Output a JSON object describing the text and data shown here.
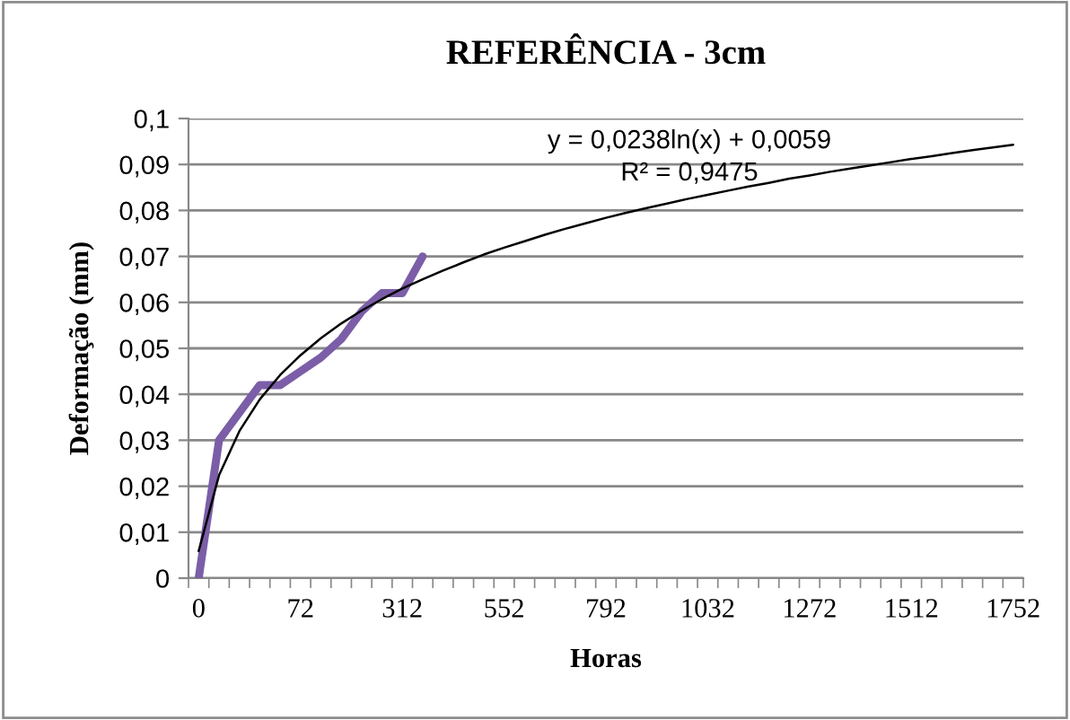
{
  "chart_data": {
    "type": "line",
    "title": "REFERÊNCIA - 3cm",
    "xlabel": "Horas",
    "ylabel": "Deformação (mm)",
    "categories": [
      "0",
      null,
      null,
      null,
      null,
      "72",
      null,
      null,
      null,
      null,
      "312",
      null,
      null,
      null,
      null,
      "552",
      null,
      null,
      null,
      null,
      "792",
      null,
      null,
      null,
      null,
      "1032",
      null,
      null,
      null,
      null,
      "1272",
      null,
      null,
      null,
      null,
      "1512",
      null,
      null,
      null,
      null,
      "1752"
    ],
    "series": [
      {
        "color": "#7b5ea7",
        "values": [
          0,
          0.03,
          0.036,
          0.042,
          0.042,
          0.045,
          0.048,
          0.052,
          0.058,
          0.062,
          0.062,
          0.07,
          null,
          null,
          null,
          null,
          null,
          null,
          null,
          null,
          null,
          null,
          null,
          null,
          null,
          null,
          null,
          null,
          null,
          null,
          null,
          null,
          null,
          null,
          null,
          null,
          null,
          null,
          null,
          null,
          null
        ]
      },
      {
        "color": "#000000",
        "values": [
          0.0059,
          0.0224,
          0.032,
          0.0389,
          0.0442,
          0.0485,
          0.0522,
          0.0554,
          0.0582,
          0.0607,
          0.063,
          0.065,
          0.0669,
          0.0687,
          0.0704,
          0.0719,
          0.0733,
          0.0747,
          0.076,
          0.0772,
          0.0784,
          0.0795,
          0.0805,
          0.0815,
          0.0825,
          0.0834,
          0.0843,
          0.0852,
          0.086,
          0.0869,
          0.0876,
          0.0884,
          0.0891,
          0.0898,
          0.0905,
          0.0912,
          0.0918,
          0.0925,
          0.0931,
          0.0937,
          0.0943
        ]
      }
    ],
    "ylim": [
      0,
      0.1
    ],
    "yticks": [
      {
        "value": 0,
        "label": "0"
      },
      {
        "value": 0.01,
        "label": "0,01"
      },
      {
        "value": 0.02,
        "label": "0,02"
      },
      {
        "value": 0.03,
        "label": "0,03"
      },
      {
        "value": 0.04,
        "label": "0,04"
      },
      {
        "value": 0.05,
        "label": "0,05"
      },
      {
        "value": 0.06,
        "label": "0,06"
      },
      {
        "value": 0.07,
        "label": "0,07"
      },
      {
        "value": 0.08,
        "label": "0,08"
      },
      {
        "value": 0.09,
        "label": "0,09"
      },
      {
        "value": 0.1,
        "label": "0,1"
      }
    ],
    "grid": "y",
    "annotations": [
      "y = 0,0238ln(x) + 0,0059",
      "R² = 0,9475"
    ]
  }
}
